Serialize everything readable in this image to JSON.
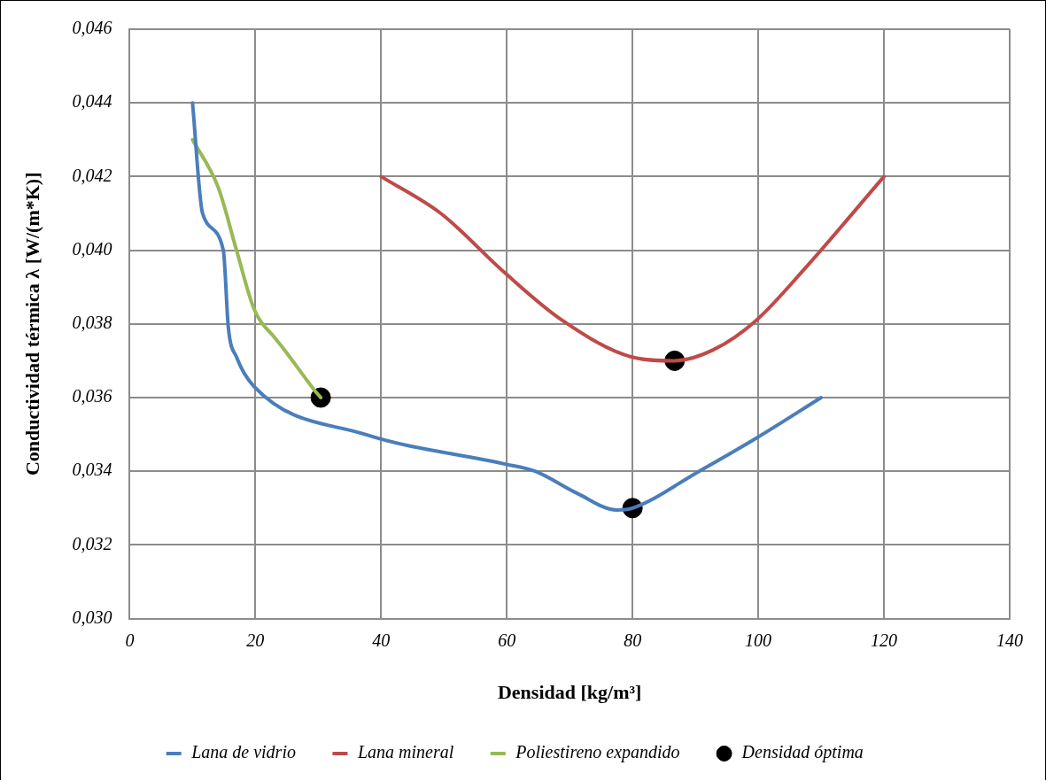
{
  "chart_data": {
    "type": "line",
    "xlabel": "Densidad [kg/m³]",
    "ylabel": "Conductividad térmica λ [W/(m*K)]",
    "xlim": [
      0,
      140
    ],
    "xticks": [
      0,
      20,
      40,
      60,
      80,
      100,
      120,
      140
    ],
    "ylim": [
      0.03,
      0.046
    ],
    "yticks": [
      {
        "value": 0.03,
        "label": "0,030"
      },
      {
        "value": 0.032,
        "label": "0,032"
      },
      {
        "value": 0.034,
        "label": "0,034"
      },
      {
        "value": 0.036,
        "label": "0,036"
      },
      {
        "value": 0.038,
        "label": "0,038"
      },
      {
        "value": 0.04,
        "label": "0,040"
      },
      {
        "value": 0.042,
        "label": "0,042"
      },
      {
        "value": 0.044,
        "label": "0,044"
      },
      {
        "value": 0.046,
        "label": "0,046"
      }
    ],
    "grid": true,
    "legend": "bottom",
    "line_style": "solid",
    "series": [
      {
        "name": "Lana de vidrio",
        "marker": "none",
        "color": "#4a7ebb",
        "x": [
          10,
          11.6,
          14.9,
          15.7,
          17,
          19.8,
          37.5,
          59.6,
          64.5,
          71.2,
          77.5,
          80,
          90.6,
          99.7,
          110
        ],
        "values": [
          0.044,
          0.041,
          0.04,
          0.0379,
          0.0371,
          0.0363,
          0.035,
          0.0342,
          0.034,
          0.0334,
          0.03295,
          0.033,
          0.034,
          0.0349,
          0.036
        ]
      },
      {
        "name": "Lana mineral",
        "marker": "none",
        "color": "#be4b48",
        "x": [
          40,
          49.5,
          59.6,
          68.8,
          79.9,
          86.7,
          92.9,
          99.7,
          107.4,
          120
        ],
        "values": [
          0.042,
          0.041,
          0.0394,
          0.0381,
          0.0371,
          0.037,
          0.0373,
          0.0381,
          0.0395,
          0.042
        ]
      },
      {
        "name": "Poliestireno expandido",
        "marker": "none",
        "color": "#98b954",
        "x": [
          10,
          14.1,
          17,
          19.8,
          23.2,
          24.6,
          29.4,
          30.4
        ],
        "values": [
          0.043,
          0.0417,
          0.04,
          0.0384,
          0.0376,
          0.0373,
          0.0362,
          0.036
        ]
      },
      {
        "name": "Densidad óptima",
        "type": "scatter",
        "marker": "circle",
        "color": "#000000",
        "x": [
          30.4,
          80,
          86.7
        ],
        "values": [
          0.036,
          0.033,
          0.037
        ]
      }
    ]
  }
}
